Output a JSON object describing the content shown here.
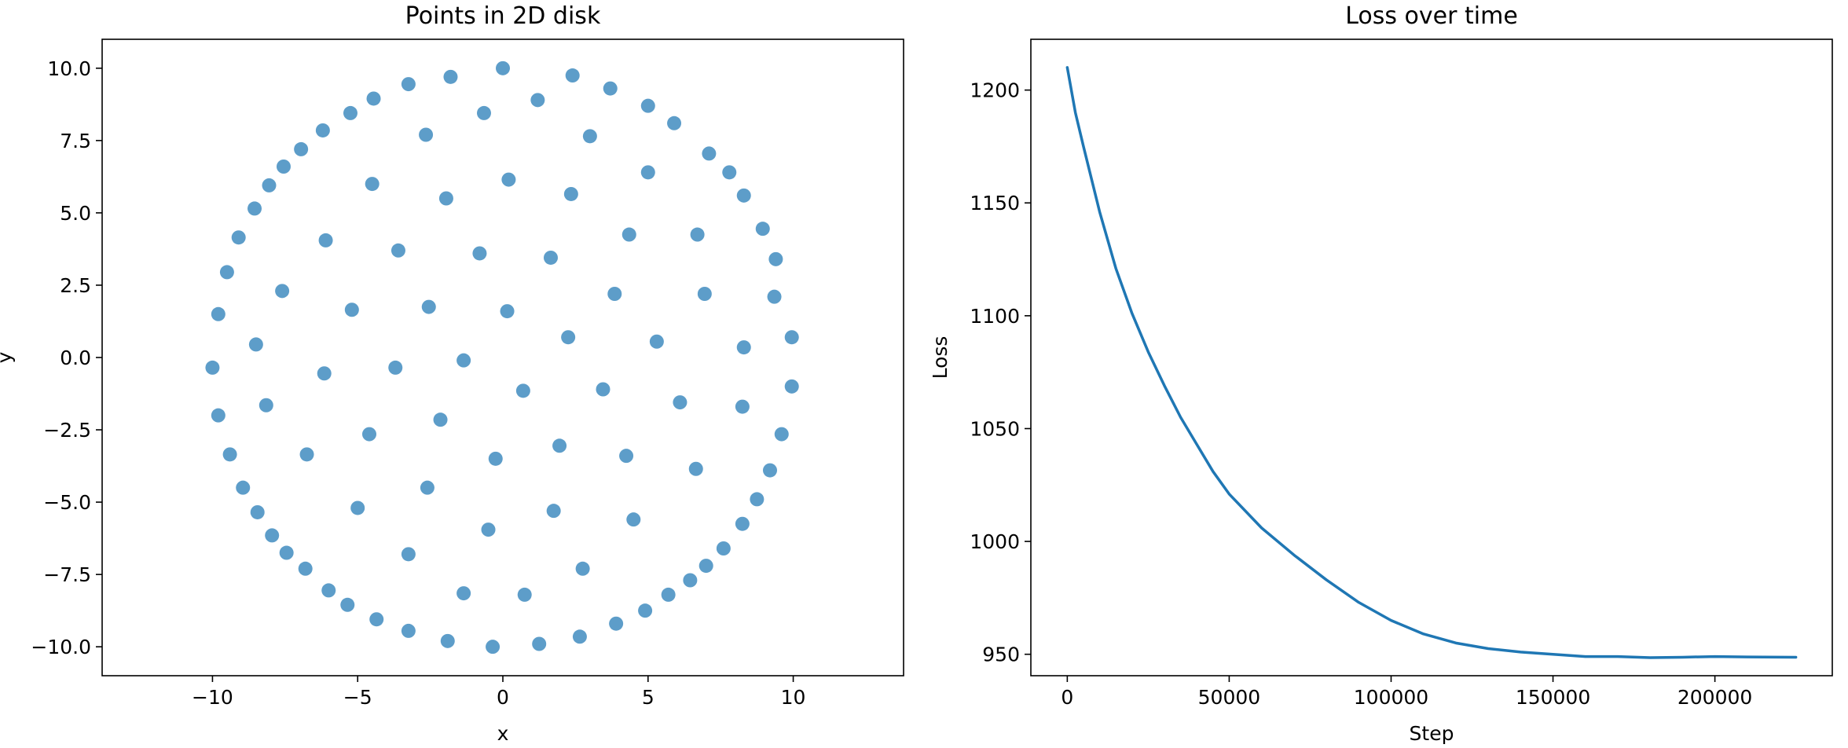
{
  "chart_data": [
    {
      "type": "scatter",
      "title": "Points in 2D disk",
      "xlabel": "x",
      "ylabel": "y",
      "xlim": [
        -13.8,
        13.8
      ],
      "ylim": [
        -11.0,
        11.0
      ],
      "xticks": [
        -10,
        -5,
        0,
        5,
        10
      ],
      "xtick_labels": [
        "−10",
        "−5",
        "0",
        "5",
        "10"
      ],
      "yticks": [
        10.0,
        7.5,
        5.0,
        2.5,
        0.0,
        -2.5,
        -5.0,
        -7.5,
        -10.0
      ],
      "ytick_labels": [
        "10.0",
        "7.5",
        "5.0",
        "2.5",
        "0.0",
        "−2.5",
        "−5.0",
        "−7.5",
        "−10.0"
      ],
      "grid": false,
      "colors": {
        "point": "#1f77b4"
      },
      "points": [
        [
          0.0,
          10.0
        ],
        [
          2.4,
          9.75
        ],
        [
          3.7,
          9.3
        ],
        [
          5.0,
          8.7
        ],
        [
          5.9,
          8.1
        ],
        [
          7.1,
          7.05
        ],
        [
          7.8,
          6.4
        ],
        [
          8.3,
          5.6
        ],
        [
          8.95,
          4.45
        ],
        [
          9.4,
          3.4
        ],
        [
          9.35,
          2.1
        ],
        [
          9.95,
          0.7
        ],
        [
          9.95,
          -1.0
        ],
        [
          9.6,
          -2.65
        ],
        [
          9.2,
          -3.9
        ],
        [
          8.75,
          -4.9
        ],
        [
          8.25,
          -5.75
        ],
        [
          7.6,
          -6.6
        ],
        [
          7.0,
          -7.2
        ],
        [
          6.45,
          -7.7
        ],
        [
          5.7,
          -8.2
        ],
        [
          4.9,
          -8.75
        ],
        [
          3.9,
          -9.2
        ],
        [
          2.65,
          -9.65
        ],
        [
          1.25,
          -9.9
        ],
        [
          -0.35,
          -10.0
        ],
        [
          -1.9,
          -9.8
        ],
        [
          -3.25,
          -9.45
        ],
        [
          -4.35,
          -9.05
        ],
        [
          -5.35,
          -8.55
        ],
        [
          -6.0,
          -8.05
        ],
        [
          -6.8,
          -7.3
        ],
        [
          -7.45,
          -6.75
        ],
        [
          -7.95,
          -6.15
        ],
        [
          -8.45,
          -5.35
        ],
        [
          -8.95,
          -4.5
        ],
        [
          -9.4,
          -3.35
        ],
        [
          -9.8,
          -2.0
        ],
        [
          -10.0,
          -0.35
        ],
        [
          -9.8,
          1.5
        ],
        [
          -9.5,
          2.95
        ],
        [
          -9.1,
          4.15
        ],
        [
          -8.55,
          5.15
        ],
        [
          -8.05,
          5.95
        ],
        [
          -7.55,
          6.6
        ],
        [
          -6.95,
          7.2
        ],
        [
          -6.2,
          7.85
        ],
        [
          -5.25,
          8.45
        ],
        [
          -4.45,
          8.95
        ],
        [
          -3.25,
          9.45
        ],
        [
          -1.8,
          9.7
        ],
        [
          -0.65,
          8.45
        ],
        [
          1.2,
          8.9
        ],
        [
          3.0,
          7.65
        ],
        [
          5.0,
          6.4
        ],
        [
          -2.65,
          7.7
        ],
        [
          -4.5,
          6.0
        ],
        [
          -1.95,
          5.5
        ],
        [
          0.2,
          6.15
        ],
        [
          2.35,
          5.65
        ],
        [
          4.35,
          4.25
        ],
        [
          6.7,
          4.25
        ],
        [
          -6.1,
          4.05
        ],
        [
          -3.6,
          3.7
        ],
        [
          -0.8,
          3.6
        ],
        [
          1.65,
          3.45
        ],
        [
          3.85,
          2.2
        ],
        [
          6.95,
          2.2
        ],
        [
          -7.6,
          2.3
        ],
        [
          -5.2,
          1.65
        ],
        [
          -2.55,
          1.75
        ],
        [
          0.15,
          1.6
        ],
        [
          2.25,
          0.7
        ],
        [
          5.3,
          0.55
        ],
        [
          8.3,
          0.35
        ],
        [
          -8.5,
          0.45
        ],
        [
          -6.15,
          -0.55
        ],
        [
          -3.7,
          -0.35
        ],
        [
          -1.35,
          -0.1
        ],
        [
          0.7,
          -1.15
        ],
        [
          3.45,
          -1.1
        ],
        [
          6.1,
          -1.55
        ],
        [
          8.25,
          -1.7
        ],
        [
          -8.15,
          -1.65
        ],
        [
          -6.75,
          -3.35
        ],
        [
          -4.6,
          -2.65
        ],
        [
          -2.15,
          -2.15
        ],
        [
          -0.25,
          -3.5
        ],
        [
          1.95,
          -3.05
        ],
        [
          4.25,
          -3.4
        ],
        [
          6.65,
          -3.85
        ],
        [
          -5.0,
          -5.2
        ],
        [
          -2.6,
          -4.5
        ],
        [
          -0.5,
          -5.95
        ],
        [
          1.75,
          -5.3
        ],
        [
          4.5,
          -5.6
        ],
        [
          -3.25,
          -6.8
        ],
        [
          -1.35,
          -8.15
        ],
        [
          0.75,
          -8.2
        ],
        [
          2.75,
          -7.3
        ]
      ]
    },
    {
      "type": "line",
      "title": "Loss over time",
      "xlabel": "Step",
      "ylabel": "Loss",
      "xlim": [
        -11250,
        236250
      ],
      "ylim": [
        940.5,
        1222.5
      ],
      "xticks": [
        0,
        50000,
        100000,
        150000,
        200000
      ],
      "xtick_labels": [
        "0",
        "50000",
        "100000",
        "150000",
        "200000"
      ],
      "yticks": [
        1200,
        1150,
        1100,
        1050,
        1000,
        950
      ],
      "ytick_labels": [
        "1200",
        "1150",
        "1100",
        "1050",
        "1000",
        "950"
      ],
      "grid": false,
      "colors": {
        "line": "#1f77b4"
      },
      "series": [
        {
          "x": [
            0,
            2500,
            5000,
            10000,
            15000,
            20000,
            25000,
            30000,
            35000,
            40000,
            45000,
            50000,
            60000,
            70000,
            80000,
            90000,
            100000,
            110000,
            120000,
            130000,
            140000,
            150000,
            160000,
            170000,
            180000,
            190000,
            200000,
            210000,
            225000
          ],
          "values": [
            1210,
            1190,
            1175,
            1146,
            1121,
            1101,
            1084,
            1069,
            1055,
            1043,
            1031,
            1021,
            1006,
            994,
            983,
            973,
            965,
            959,
            955,
            952.5,
            951,
            950,
            949,
            949,
            948.5,
            948.7,
            949,
            948.8,
            948.7
          ]
        }
      ]
    }
  ]
}
